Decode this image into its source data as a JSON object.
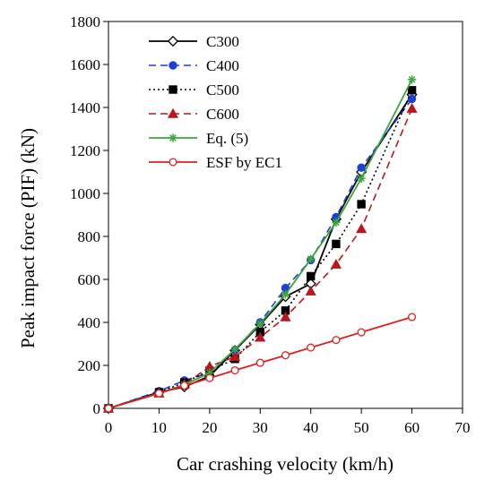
{
  "chart_data": {
    "type": "line",
    "title": "",
    "xlabel": "Car crashing velocity (km/h)",
    "ylabel": "Peak impact force (PIF) (kN)",
    "xlim": [
      0,
      70
    ],
    "ylim": [
      0,
      1800
    ],
    "xticks": [
      0,
      10,
      20,
      30,
      40,
      50,
      60,
      70
    ],
    "yticks": [
      0,
      200,
      400,
      600,
      800,
      1000,
      1200,
      1400,
      1600,
      1800
    ],
    "grid": false,
    "legend_position": "top-left",
    "series": [
      {
        "name": "C300",
        "color": "#000000",
        "line_style": "solid",
        "marker": "open-diamond",
        "x": [
          0,
          10,
          15,
          20,
          25,
          30,
          35,
          40,
          45,
          50,
          60
        ],
        "y": [
          0,
          75,
          100,
          150,
          270,
          390,
          520,
          580,
          880,
          1100,
          1460
        ]
      },
      {
        "name": "C400",
        "color": "#1f3fd6",
        "line_style": "dashed",
        "marker": "filled-circle",
        "x": [
          0,
          10,
          15,
          20,
          25,
          30,
          35,
          40,
          45,
          50,
          60
        ],
        "y": [
          0,
          80,
          130,
          165,
          270,
          400,
          560,
          690,
          890,
          1120,
          1440
        ]
      },
      {
        "name": "C500",
        "color": "#000000",
        "line_style": "dotted",
        "marker": "filled-square",
        "x": [
          0,
          10,
          15,
          20,
          25,
          30,
          35,
          40,
          45,
          50,
          60
        ],
        "y": [
          0,
          75,
          120,
          175,
          230,
          355,
          455,
          615,
          765,
          950,
          1480
        ]
      },
      {
        "name": "C600",
        "color": "#b8171d",
        "line_style": "dashed",
        "marker": "filled-triangle",
        "x": [
          0,
          10,
          15,
          20,
          25,
          30,
          35,
          40,
          45,
          50,
          60
        ],
        "y": [
          0,
          70,
          110,
          195,
          240,
          330,
          425,
          545,
          670,
          835,
          1395
        ]
      },
      {
        "name": "Eq. (5)",
        "color": "#3ca63c",
        "line_style": "solid",
        "marker": "asterisk",
        "x": [
          0,
          10,
          15,
          20,
          25,
          30,
          35,
          40,
          45,
          50,
          60
        ],
        "y": [
          0,
          70,
          110,
          165,
          275,
          395,
          530,
          695,
          865,
          1070,
          1530
        ]
      },
      {
        "name": "ESF by EC1",
        "color": "#e02020",
        "line_style": "solid",
        "marker": "open-circle",
        "x": [
          0,
          10,
          15,
          20,
          25,
          30,
          35,
          40,
          45,
          50,
          60
        ],
        "y": [
          0,
          70,
          106,
          141,
          177,
          212,
          247,
          283,
          318,
          354,
          425
        ]
      }
    ]
  }
}
